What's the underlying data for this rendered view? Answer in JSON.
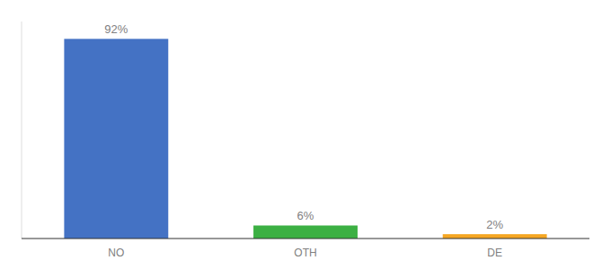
{
  "chart_data": {
    "type": "bar",
    "categories": [
      "NO",
      "OTH",
      "DE"
    ],
    "values": [
      92,
      6,
      2
    ],
    "value_labels": [
      "92%",
      "6%",
      "2%"
    ],
    "data_labels": true,
    "colors": [
      "#4472c4",
      "#3cb043",
      "#f5a623"
    ],
    "ylim": [
      0,
      100
    ],
    "tick_labels": "x"
  }
}
